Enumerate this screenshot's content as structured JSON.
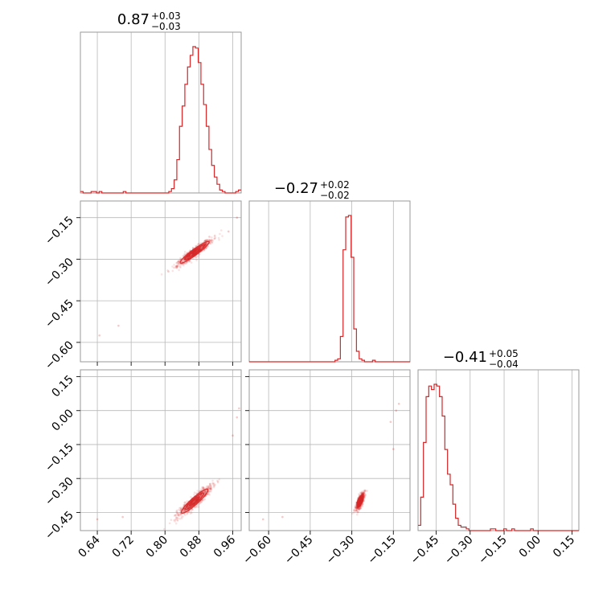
{
  "chart_data": {
    "type": "scatter",
    "color": "#d62728",
    "grid": true,
    "parameters": [
      {
        "title_main": "0.87",
        "title_plus": "+0.03",
        "title_minus": "−0.03",
        "range": [
          0.6,
          0.98
        ],
        "ticks": [
          0.64,
          0.72,
          0.8,
          0.88,
          0.96
        ],
        "tick_labels": [
          "0.64",
          "0.72",
          "0.80",
          "0.88",
          "0.96"
        ],
        "histogram": {
          "edges_start": 0.6,
          "bin_width": 0.00633,
          "counts": [
            1,
            0,
            0,
            0,
            1,
            1,
            0,
            1,
            0,
            0,
            0,
            0,
            0,
            0,
            0,
            0,
            1,
            0,
            0,
            0,
            0,
            0,
            0,
            0,
            0,
            0,
            0,
            0,
            0,
            0,
            0,
            0,
            0,
            1,
            3,
            9,
            23,
            46,
            60,
            75,
            87,
            95,
            101,
            100,
            90,
            75,
            61,
            46,
            30,
            19,
            11,
            6,
            2,
            1,
            0,
            0,
            0,
            0,
            1,
            2
          ]
        }
      },
      {
        "title_main": "−0.27",
        "title_plus": "+0.02",
        "title_minus": "−0.02",
        "range": [
          -0.67,
          -0.09
        ],
        "ticks": [
          -0.6,
          -0.45,
          -0.3,
          -0.15
        ],
        "tick_labels": [
          "−0.60",
          "−0.45",
          "−0.30",
          "−0.15"
        ],
        "histogram": {
          "edges_start": -0.67,
          "bin_width": 0.00967,
          "counts": [
            0,
            0,
            0,
            0,
            0,
            0,
            0,
            0,
            0,
            0,
            0,
            0,
            0,
            0,
            0,
            0,
            0,
            0,
            0,
            0,
            0,
            0,
            0,
            0,
            0,
            0,
            0,
            0,
            0,
            0,
            0,
            0,
            1,
            2,
            17,
            75,
            97,
            98,
            70,
            22,
            7,
            2,
            1,
            0,
            0,
            0,
            1,
            0,
            0,
            0,
            0,
            0,
            0,
            0,
            0,
            0,
            0,
            0,
            0,
            0
          ]
        }
      },
      {
        "title_main": "−0.41",
        "title_plus": "+0.05",
        "title_minus": "−0.04",
        "range": [
          -0.53,
          0.18
        ],
        "ticks": [
          -0.45,
          -0.3,
          -0.15,
          0.0,
          0.15
        ],
        "tick_labels": [
          "−0.45",
          "−0.30",
          "−0.15",
          "0.00",
          "0.15"
        ],
        "histogram": {
          "edges_start": -0.53,
          "bin_width": 0.01183,
          "counts": [
            3,
            19,
            50,
            76,
            82,
            80,
            83,
            82,
            76,
            65,
            46,
            32,
            26,
            15,
            7,
            3,
            2,
            2,
            1,
            0,
            0,
            0,
            0,
            0,
            0,
            0,
            0,
            1,
            1,
            0,
            0,
            0,
            1,
            0,
            0,
            1,
            0,
            0,
            0,
            0,
            0,
            0,
            1,
            0,
            0,
            0,
            0,
            0,
            0,
            0,
            0,
            0,
            0,
            0,
            0,
            0,
            0,
            0,
            0,
            0
          ]
        }
      }
    ],
    "pairs": [
      {
        "x": 0,
        "y": 1,
        "center": [
          0.87,
          -0.275
        ],
        "slope": 1.15,
        "major_sd": 0.032,
        "minor_sd": 0.0055,
        "outliers": [
          [
            0.645,
            -0.575
          ],
          [
            0.69,
            -0.54
          ],
          [
            0.97,
            -0.15
          ],
          [
            0.95,
            -0.2
          ]
        ]
      },
      {
        "x": 0,
        "y": 2,
        "center": [
          0.87,
          -0.4
        ],
        "slope": 1.75,
        "major_sd": 0.038,
        "minor_sd": 0.0065,
        "outliers": [
          [
            0.64,
            -0.48
          ],
          [
            0.7,
            -0.47
          ],
          [
            0.96,
            -0.11
          ],
          [
            0.97,
            -0.03
          ],
          [
            0.975,
            0.01
          ]
        ]
      },
      {
        "x": 1,
        "y": 2,
        "center": [
          -0.27,
          -0.4
        ],
        "slope": 3.2,
        "major_sd": 0.018,
        "minor_sd": 0.005,
        "outliers": [
          [
            -0.62,
            -0.48
          ],
          [
            -0.55,
            -0.47
          ],
          [
            -0.16,
            -0.05
          ],
          [
            -0.14,
            0.0
          ],
          [
            -0.13,
            0.03
          ],
          [
            -0.15,
            -0.17
          ]
        ]
      }
    ]
  }
}
